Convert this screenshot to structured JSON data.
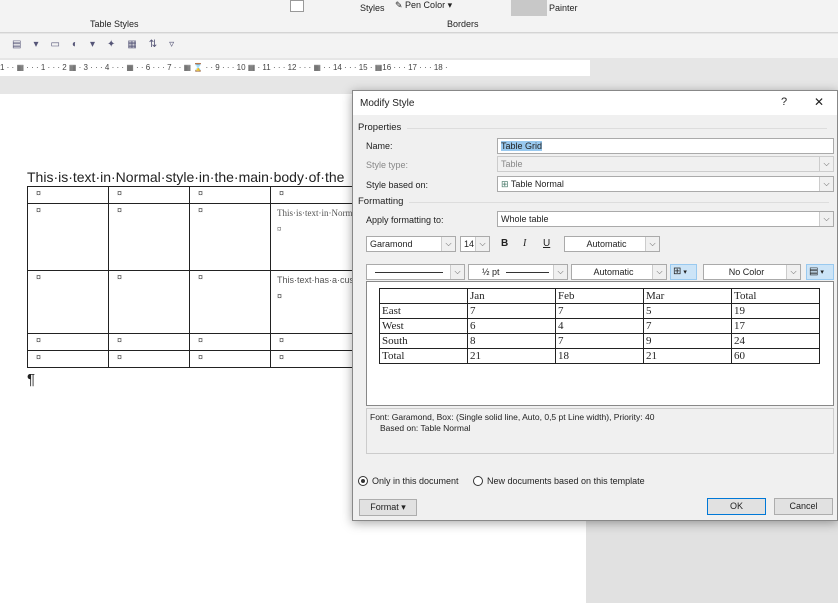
{
  "ribbon": {
    "group_table_styles": "Table Styles",
    "group_borders": "Borders",
    "styles_label": "Styles",
    "pen_color": "Pen Color",
    "painter": "Painter"
  },
  "ruler": "1 · · ▦ · · · 1 · · · 2 ▦ · 3 · · · 4 · · · ▦ · · 6 · · · 7 · · ▦ ⌛ · · 9 · · · 10 ▦ · 11 · · · 12 · · · ▦ · · 14 · · · 15 · ▦16 · · · 17 · · · 18 ·",
  "document": {
    "body_text": "This·is·text·in·Normal·style·in·the·main·body·of·the",
    "cell_mark": "¤",
    "cell_normal_text": "This·is·text·in·Normal·style·inside·the·table.¤",
    "cell_custom_text": "This·text·has·a·custom·style·applied·to·it.¤",
    "pilcrow": "¶"
  },
  "dialog": {
    "title": "Modify Style",
    "help": "?",
    "close": "✕",
    "properties": "Properties",
    "name_label": "Name:",
    "name_value": "Table Grid",
    "style_type_label": "Style type:",
    "style_type_value": "Table",
    "based_on_label": "Style based on:",
    "based_on_value": "Table Normal",
    "formatting": "Formatting",
    "apply_label": "Apply formatting to:",
    "apply_value": "Whole table",
    "font": "Garamond",
    "size": "14",
    "bold": "B",
    "italic": "I",
    "underline": "U",
    "font_color": "Automatic",
    "line_style": "",
    "line_width": "½ pt",
    "border_color": "Automatic",
    "shading": "No Color",
    "preview": {
      "rows": [
        [
          "",
          "Jan",
          "Feb",
          "Mar",
          "Total"
        ],
        [
          "East",
          "7",
          "7",
          "5",
          "19"
        ],
        [
          "West",
          "6",
          "4",
          "7",
          "17"
        ],
        [
          "South",
          "8",
          "7",
          "9",
          "24"
        ],
        [
          "Total",
          "21",
          "18",
          "21",
          "60"
        ]
      ]
    },
    "description_line1": "Font: Garamond, Box: (Single solid line, Auto,  0,5 pt Line width), Priority: 40",
    "description_line2": "Based on: Table Normal",
    "radio_only": "Only in this document",
    "radio_new": "New documents based on this template",
    "format_btn": "Format ▾",
    "ok": "OK",
    "cancel": "Cancel"
  }
}
